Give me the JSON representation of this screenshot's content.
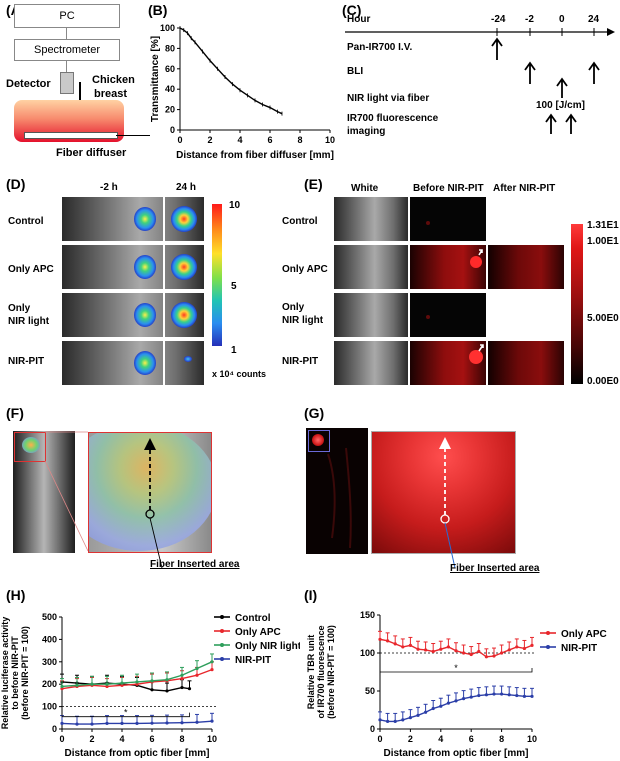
{
  "panels": {
    "A": "(A)",
    "B": "(B)",
    "C": "(C)",
    "D": "(D)",
    "E": "(E)",
    "F": "(F)",
    "G": "(G)",
    "H": "(H)",
    "I": "(I)"
  },
  "panelA": {
    "pc": "PC",
    "spectrometer": "Spectrometer",
    "detector": "Detector",
    "chicken": "Chicken",
    "breast": "breast",
    "fiber": "Fiber diffuser"
  },
  "panelB": {
    "chart_data": {
      "type": "line",
      "title": "",
      "xlabel": "Distance from fiber diffuser [mm]",
      "ylabel": "Transmittance [%]",
      "xlim": [
        0,
        10
      ],
      "ylim": [
        0,
        100
      ],
      "xticks": [
        0,
        2,
        4,
        6,
        8,
        10
      ],
      "yticks": [
        0,
        20,
        40,
        60,
        80,
        100
      ],
      "x": [
        0,
        0.25,
        0.5,
        0.75,
        1,
        1.5,
        2,
        2.5,
        3,
        3.5,
        4,
        4.5,
        5,
        5.5,
        6,
        6.5,
        6.8
      ],
      "y": [
        100,
        98,
        95,
        90,
        86,
        77,
        68,
        60,
        52,
        45,
        39,
        34,
        29,
        25,
        22,
        18,
        16
      ]
    }
  },
  "panelC": {
    "hour_label": "Hour",
    "ticks": [
      "-24",
      "-2",
      "0",
      "24"
    ],
    "rows": [
      "Pan-IR700 I.V.",
      "BLI",
      "NIR light via fiber",
      "IR700 fluorescence",
      "imaging"
    ],
    "dose": "100 [J/cm]"
  },
  "panelD": {
    "cols": [
      "-2 h",
      "24 h"
    ],
    "rows": [
      "Control",
      "Only APC",
      "Only",
      "NIR light",
      "NIR-PIT"
    ],
    "scale": [
      "10",
      "5",
      "1"
    ],
    "unit": "x 10⁴ counts"
  },
  "panelE": {
    "cols": [
      "White",
      "Before NIR-PIT",
      "After NIR-PIT"
    ],
    "rows": [
      "Control",
      "Only APC",
      "Only",
      "NIR light",
      "NIR-PIT"
    ],
    "scale": [
      "1.31E1",
      "1.00E1",
      "5.00E0",
      "0.00E0"
    ]
  },
  "panelF": {
    "caption": "Fiber Inserted area"
  },
  "panelG": {
    "caption": "Fiber Inserted area"
  },
  "panelH": {
    "chart_data": {
      "type": "line",
      "ylabel_lines": [
        "Relative luciferase activity",
        "to before NIR-PIT",
        "(before NIR-PIT = 100)"
      ],
      "xlabel": "Distance from optic fiber [mm]",
      "xlim": [
        0,
        10
      ],
      "ylim": [
        0,
        500
      ],
      "xticks": [
        0,
        2,
        4,
        6,
        8,
        10
      ],
      "yticks": [
        0,
        100,
        200,
        300,
        400,
        500
      ],
      "reference": 100,
      "significance": "*",
      "series": [
        {
          "name": "Control",
          "color": "#000000",
          "x": [
            0,
            1,
            2,
            3,
            4,
            5,
            6,
            7,
            8,
            8.5
          ],
          "values": [
            210,
            205,
            200,
            205,
            200,
            195,
            175,
            170,
            185,
            180
          ]
        },
        {
          "name": "Only APC",
          "color": "#e8272c",
          "x": [
            0,
            1,
            2,
            3,
            4,
            5,
            6,
            7,
            8,
            9,
            10
          ],
          "values": [
            180,
            190,
            195,
            190,
            195,
            200,
            210,
            215,
            225,
            240,
            265
          ]
        },
        {
          "name": "Only NIR light",
          "color": "#2e9e5b",
          "x": [
            0,
            1,
            2,
            3,
            4,
            5,
            6,
            7,
            8,
            9,
            10
          ],
          "values": [
            190,
            195,
            200,
            200,
            205,
            210,
            215,
            220,
            240,
            270,
            300
          ]
        },
        {
          "name": "NIR-PIT",
          "color": "#2b3ea8",
          "x": [
            0,
            1,
            2,
            3,
            4,
            5,
            6,
            7,
            8,
            9,
            10
          ],
          "values": [
            25,
            22,
            22,
            25,
            25,
            25,
            26,
            27,
            28,
            30,
            35
          ]
        }
      ]
    }
  },
  "panelI": {
    "chart_data": {
      "type": "line",
      "ylabel_lines": [
        "Relative TBR unit",
        "of IR700 fluorescence",
        "(before NIR-PIT = 100)"
      ],
      "xlabel": "Distance from optic fiber [mm]",
      "xlim": [
        0,
        10
      ],
      "ylim": [
        0,
        150
      ],
      "xticks": [
        0,
        2,
        4,
        6,
        8,
        10
      ],
      "yticks": [
        0,
        50,
        100,
        150
      ],
      "reference": 100,
      "significance": "*",
      "series": [
        {
          "name": "Only APC",
          "color": "#e8272c",
          "x": [
            0,
            0.5,
            1,
            1.5,
            2,
            2.5,
            3,
            3.5,
            4,
            4.5,
            5,
            5.5,
            6,
            6.5,
            7,
            7.5,
            8,
            8.5,
            9,
            9.5,
            10
          ],
          "values": [
            118,
            116,
            112,
            108,
            110,
            105,
            104,
            102,
            105,
            108,
            103,
            100,
            98,
            102,
            95,
            96,
            100,
            104,
            108,
            106,
            110
          ]
        },
        {
          "name": "NIR-PIT",
          "color": "#2b3ea8",
          "x": [
            0,
            0.5,
            1,
            1.5,
            2,
            2.5,
            3,
            3.5,
            4,
            4.5,
            5,
            5.5,
            6,
            6.5,
            7,
            7.5,
            8,
            8.5,
            9,
            9.5,
            10
          ],
          "values": [
            12,
            10,
            10,
            12,
            15,
            18,
            22,
            27,
            30,
            34,
            37,
            40,
            42,
            44,
            45,
            46,
            46,
            45,
            44,
            43,
            43
          ]
        }
      ]
    }
  }
}
